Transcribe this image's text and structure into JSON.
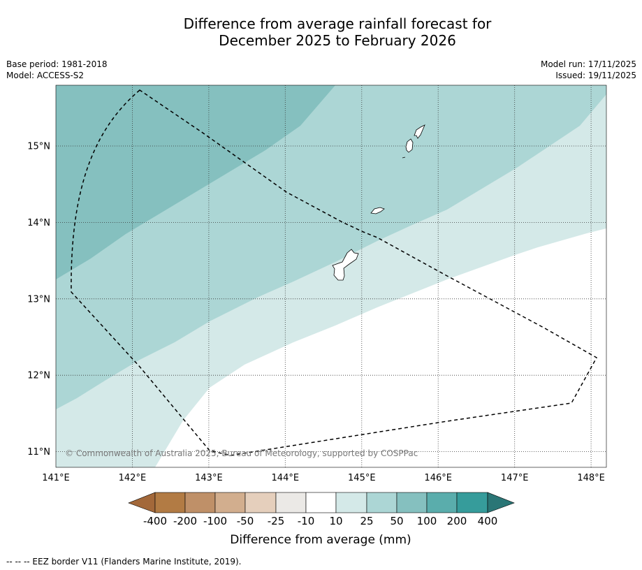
{
  "title": {
    "line1": "Difference from average rainfall forecast for",
    "line2": "December 2025 to February 2026"
  },
  "meta": {
    "base_period": "Base period: 1981-2018",
    "model": "Model: ACCESS-S2",
    "model_run": "Model run: 17/11/2025",
    "issued": "Issued: 19/11/2025"
  },
  "map": {
    "lon_range": [
      141,
      148.2
    ],
    "lat_range": [
      10.8,
      15.8
    ],
    "lat_ticks": [
      "15°N",
      "14°N",
      "13°N",
      "12°N",
      "11°N"
    ],
    "lon_ticks": [
      "141°E",
      "142°E",
      "143°E",
      "144°E",
      "145°E",
      "146°E",
      "147°E",
      "148°E"
    ],
    "copyright": "© Commonwealth of Australia 2025, Bureau of Meteorology, supported by COSPPac",
    "colors": {
      "band_100_200": "#85c0bf",
      "band_50_100": "#acd6d5",
      "band_25_50": "#d4e9e8",
      "band_10_25": "#ffffff"
    }
  },
  "legend": {
    "labels": [
      "-400",
      "-200",
      "-100",
      "-50",
      "-25",
      "-10",
      "10",
      "25",
      "50",
      "100",
      "200",
      "400"
    ],
    "colors": [
      "#a3683a",
      "#b27b44",
      "#bf9068",
      "#d2ae8e",
      "#e5cfbc",
      "#ebe9e6",
      "#ffffff",
      "#d4e9e8",
      "#acd6d5",
      "#85c0bf",
      "#5aadac",
      "#369c9b",
      "#2a7676"
    ],
    "title": "Difference from average (mm)"
  },
  "footer": {
    "note": "--  --  -- EEZ border V11 (Flanders Marine Institute, 2019)."
  }
}
